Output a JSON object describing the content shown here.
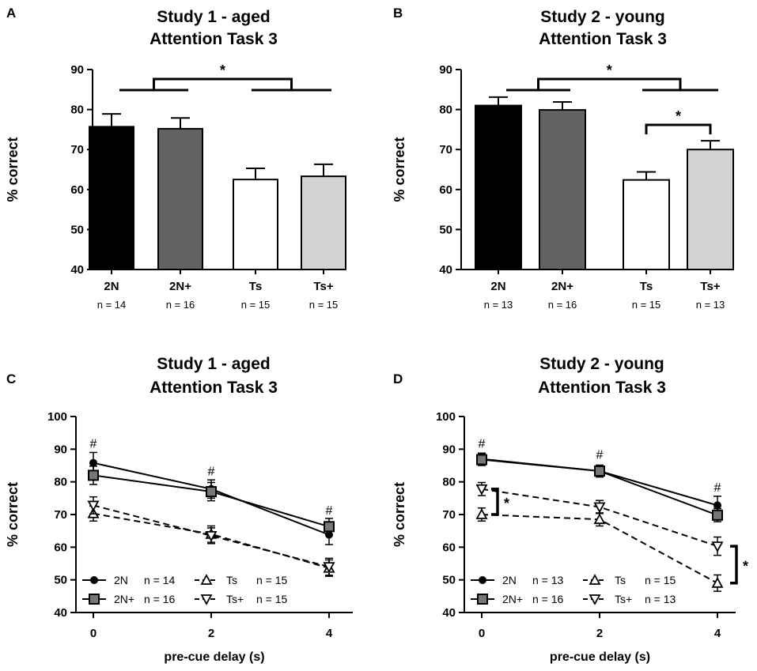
{
  "chart_data": [
    {
      "panel": "A",
      "type": "bar",
      "title": [
        "Study 1 - aged",
        "Attention Task 3"
      ],
      "ylabel": "% correct",
      "ylim": [
        40,
        90
      ],
      "yticks": [
        40,
        50,
        60,
        70,
        80,
        90
      ],
      "categories": [
        "2N",
        "2N+",
        "Ts",
        "Ts+"
      ],
      "n_labels": [
        "n = 14",
        "n = 16",
        "n = 15",
        "n = 15"
      ],
      "values": [
        75.7,
        75.2,
        62.5,
        63.3
      ],
      "errors": [
        3.2,
        2.7,
        2.8,
        3.0
      ],
      "colors": [
        "#000000",
        "#636363",
        "#ffffff",
        "#d3d3d3"
      ],
      "significance": [
        {
          "from": [
            0,
            1
          ],
          "to": [
            2,
            3
          ],
          "label": "*"
        }
      ]
    },
    {
      "panel": "B",
      "type": "bar",
      "title": [
        "Study 2 - young",
        "Attention Task 3"
      ],
      "ylabel": "% correct",
      "ylim": [
        40,
        90
      ],
      "yticks": [
        40,
        50,
        60,
        70,
        80,
        90
      ],
      "categories": [
        "2N",
        "2N+",
        "Ts",
        "Ts+"
      ],
      "n_labels": [
        "n = 13",
        "n = 16",
        "n = 15",
        "n = 13"
      ],
      "values": [
        81.0,
        79.9,
        62.4,
        70.0
      ],
      "errors": [
        2.1,
        2.0,
        2.0,
        2.2
      ],
      "colors": [
        "#000000",
        "#636363",
        "#ffffff",
        "#d3d3d3"
      ],
      "significance": [
        {
          "from": [
            0,
            1
          ],
          "to": [
            2,
            3
          ],
          "label": "*"
        },
        {
          "from": [
            2
          ],
          "to": [
            3
          ],
          "label": "*"
        }
      ]
    },
    {
      "panel": "C",
      "type": "line",
      "title": [
        "Study 1 - aged",
        "Attention Task 3"
      ],
      "xlabel": "pre-cue delay (s)",
      "ylabel": "% correct",
      "ylim": [
        40,
        100
      ],
      "yticks": [
        40,
        50,
        60,
        70,
        80,
        90,
        100
      ],
      "x": [
        0,
        2,
        4
      ],
      "series": [
        {
          "name": "2N",
          "n": "n = 14",
          "marker": "circle",
          "dash": false,
          "values": [
            85.8,
            77.8,
            63.8
          ],
          "errors": [
            3.2,
            2.8,
            3.0
          ]
        },
        {
          "name": "2N+",
          "n": "n = 16",
          "marker": "square",
          "dash": false,
          "values": [
            82.0,
            77.0,
            66.3
          ],
          "errors": [
            2.8,
            2.8,
            2.5
          ]
        },
        {
          "name": "Ts",
          "n": "n = 15",
          "marker": "triangle-up",
          "dash": true,
          "values": [
            70.3,
            64.0,
            53.6
          ],
          "errors": [
            2.3,
            2.5,
            2.5
          ]
        },
        {
          "name": "Ts+",
          "n": "n = 15",
          "marker": "triangle-down",
          "dash": true,
          "values": [
            72.8,
            63.5,
            54.0
          ],
          "errors": [
            2.6,
            2.4,
            2.6
          ]
        }
      ],
      "annotations": [
        {
          "x": 0,
          "y": 90.5,
          "label": "#"
        },
        {
          "x": 2,
          "y": 82.0,
          "label": "#"
        },
        {
          "x": 4,
          "y": 70.0,
          "label": "#"
        }
      ]
    },
    {
      "panel": "D",
      "type": "line",
      "title": [
        "Study 2 - young",
        "Attention Task 3"
      ],
      "xlabel": "pre-cue delay (s)",
      "ylabel": "% correct",
      "ylim": [
        40,
        100
      ],
      "yticks": [
        40,
        50,
        60,
        70,
        80,
        90,
        100
      ],
      "x": [
        0,
        2,
        4
      ],
      "series": [
        {
          "name": "2N",
          "n": "n = 13",
          "marker": "circle",
          "dash": false,
          "values": [
            87.0,
            83.3,
            72.8
          ],
          "errors": [
            1.8,
            1.8,
            2.8
          ]
        },
        {
          "name": "2N+",
          "n": "n = 16",
          "marker": "square",
          "dash": false,
          "values": [
            86.8,
            83.3,
            69.8
          ],
          "errors": [
            1.8,
            1.8,
            2.0
          ]
        },
        {
          "name": "Ts",
          "n": "n = 15",
          "marker": "triangle-up",
          "dash": true,
          "values": [
            70.0,
            68.5,
            49.0
          ],
          "errors": [
            2.0,
            2.0,
            2.5
          ]
        },
        {
          "name": "Ts+",
          "n": "n = 13",
          "marker": "triangle-down",
          "dash": true,
          "values": [
            77.8,
            72.3,
            60.3
          ],
          "errors": [
            2.0,
            2.0,
            2.8
          ]
        }
      ],
      "annotations": [
        {
          "x": 0,
          "y": 90.5,
          "label": "#"
        },
        {
          "x": 2,
          "y": 87.0,
          "label": "#"
        },
        {
          "x": 4,
          "y": 77.0,
          "label": "#"
        }
      ],
      "significance": [
        {
          "x": 0,
          "between": [
            "Ts",
            "Ts+"
          ],
          "label": "*"
        },
        {
          "x": 4,
          "between": [
            "Ts",
            "Ts+"
          ],
          "label": "*"
        }
      ]
    }
  ]
}
